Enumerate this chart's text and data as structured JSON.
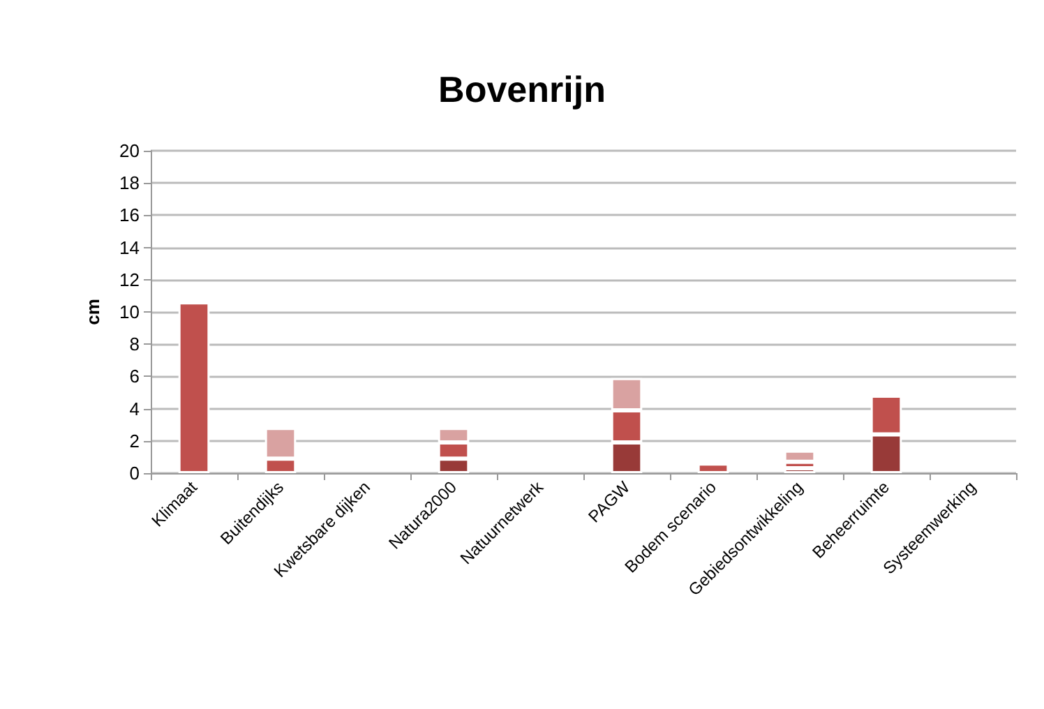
{
  "chart_data": {
    "type": "bar",
    "title": "Bovenrijn",
    "ylabel": "cm",
    "stacked": true,
    "grid": "y",
    "categories": [
      "Klimaat",
      "Buitendijks",
      "Kwetsbare dijken",
      "Natura2000",
      "Natuurnetwerk",
      "PAGW",
      "Bodem scenario",
      "Gebiedsontwikkeling",
      "Beheerruimte",
      "Systeemwerking"
    ],
    "series": [
      {
        "color": "#983a38",
        "values": [
          null,
          null,
          null,
          0.9,
          null,
          1.9,
          null,
          0.3,
          2.4,
          null
        ]
      },
      {
        "color": "#c0504d",
        "values": [
          10.6,
          0.9,
          null,
          1.0,
          null,
          2.0,
          0.6,
          0.4,
          2.4,
          null
        ]
      },
      {
        "color": "#d9a2a1",
        "values": [
          null,
          1.9,
          null,
          0.9,
          null,
          2.0,
          null,
          0.7,
          null,
          null
        ]
      }
    ],
    "ylim": [
      0,
      20
    ],
    "yticks": [
      0,
      2,
      4,
      6,
      8,
      10,
      12,
      14,
      16,
      18,
      20
    ]
  }
}
